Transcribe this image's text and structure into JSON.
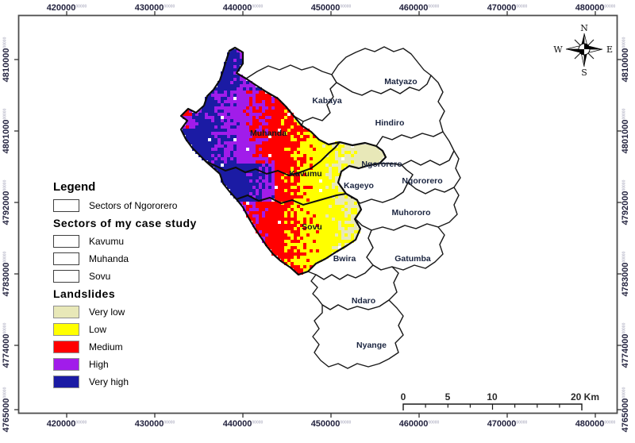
{
  "map": {
    "sector_labels": [
      {
        "key": "kabaya",
        "text": "Kabaya"
      },
      {
        "key": "matyazo",
        "text": "Matyazo"
      },
      {
        "key": "hindiro",
        "text": "Hindiro"
      },
      {
        "key": "ngororero_sector",
        "text": "Ngororero"
      },
      {
        "key": "ngororero_east",
        "text": "Ngororero"
      },
      {
        "key": "kageyo",
        "text": "Kageyo"
      },
      {
        "key": "muhororo",
        "text": "Muhororo"
      },
      {
        "key": "bwira",
        "text": "Bwira"
      },
      {
        "key": "gatumba",
        "text": "Gatumba"
      },
      {
        "key": "ndaro",
        "text": "Ndaro"
      },
      {
        "key": "nyange",
        "text": "Nyange"
      }
    ],
    "case_study_labels": [
      {
        "key": "muhanda",
        "text": "Muhanda"
      },
      {
        "key": "kavumu",
        "text": "Kavumu"
      },
      {
        "key": "sovu",
        "text": "Sovu"
      }
    ]
  },
  "legend": {
    "title": "Legend",
    "groups": [
      {
        "heading": "",
        "items": [
          {
            "label": "Sectors of Ngororero",
            "fill": "#ffffff"
          }
        ]
      },
      {
        "heading": "Sectors of my case study",
        "items": [
          {
            "label": "Kavumu",
            "fill": "#ffffff"
          },
          {
            "label": "Muhanda",
            "fill": "#ffffff"
          },
          {
            "label": "Sovu",
            "fill": "#ffffff"
          }
        ]
      },
      {
        "heading": "Landslides",
        "items": [
          {
            "label": "Very low",
            "fill": "#E8E8B8"
          },
          {
            "label": "Low",
            "fill": "#FFFF00"
          },
          {
            "label": "Medium",
            "fill": "#FF0000"
          },
          {
            "label": "High",
            "fill": "#A11CEA"
          },
          {
            "label": "Very high",
            "fill": "#1B1BA4"
          }
        ]
      }
    ]
  },
  "grid": {
    "x_labels": [
      "420000",
      "430000",
      "440000",
      "450000",
      "460000",
      "470000",
      "480000"
    ],
    "y_labels": [
      "4810000",
      "4801000",
      "4792000",
      "4783000",
      "4774000",
      "4765000"
    ],
    "suffix": "00000"
  },
  "compass": {
    "north": "N",
    "east": "E",
    "south": "S",
    "west": "W"
  },
  "scale_bar": {
    "labels": [
      "0",
      "5",
      "10",
      "20 Km"
    ]
  }
}
